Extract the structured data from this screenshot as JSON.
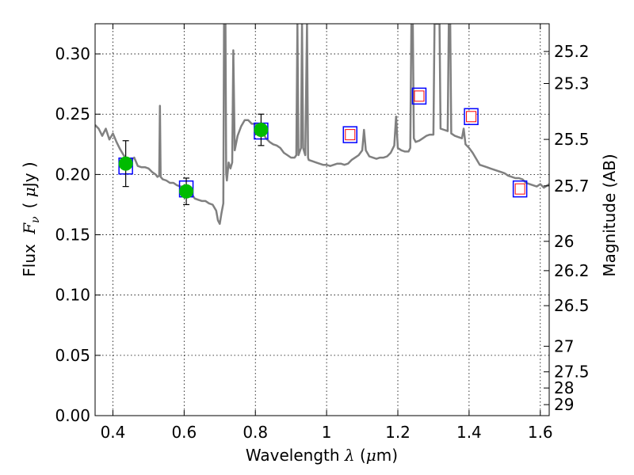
{
  "chart_data": {
    "type": "scatter",
    "xlabel_parts": [
      "Wavelength",
      "λ",
      "(",
      "μ",
      "m)"
    ],
    "ylabel_parts": [
      "Flux",
      "F",
      "ν",
      "(",
      "μ",
      "Jy",
      ")"
    ],
    "y2label": "Magnitude (AB)",
    "xlim": [
      0.35,
      1.625
    ],
    "ylim": [
      0.0,
      0.325
    ],
    "x_ticks": [
      {
        "value": 0.4,
        "label": "0.4"
      },
      {
        "value": 0.6,
        "label": "0.6"
      },
      {
        "value": 0.8,
        "label": "0.8"
      },
      {
        "value": 1.0,
        "label": "1"
      },
      {
        "value": 1.2,
        "label": "1.2"
      },
      {
        "value": 1.4,
        "label": "1.4"
      },
      {
        "value": 1.6,
        "label": "1.6"
      }
    ],
    "y_ticks": [
      {
        "value": 0.0,
        "label": "0.00"
      },
      {
        "value": 0.05,
        "label": "0.05"
      },
      {
        "value": 0.1,
        "label": "0.10"
      },
      {
        "value": 0.15,
        "label": "0.15"
      },
      {
        "value": 0.2,
        "label": "0.20"
      },
      {
        "value": 0.25,
        "label": "0.25"
      },
      {
        "value": 0.3,
        "label": "0.30"
      }
    ],
    "mag_ticks": [
      {
        "value": 25.2,
        "label": "25.2"
      },
      {
        "value": 25.3,
        "label": "25.3"
      },
      {
        "value": 25.5,
        "label": "25.5"
      },
      {
        "value": 25.7,
        "label": "25.7"
      },
      {
        "value": 26.0,
        "label": "26"
      },
      {
        "value": 26.2,
        "label": "26.2"
      },
      {
        "value": 26.5,
        "label": "26.5"
      },
      {
        "value": 27.0,
        "label": "27"
      },
      {
        "value": 27.5,
        "label": "27.5"
      },
      {
        "value": 28.0,
        "label": "28"
      },
      {
        "value": 29.0,
        "label": "29"
      }
    ],
    "grid": true,
    "sed_model": {
      "color": "#808080",
      "points": [
        [
          0.35,
          0.241
        ],
        [
          0.36,
          0.238
        ],
        [
          0.37,
          0.232
        ],
        [
          0.38,
          0.238
        ],
        [
          0.39,
          0.229
        ],
        [
          0.4,
          0.234
        ],
        [
          0.41,
          0.227
        ],
        [
          0.42,
          0.221
        ],
        [
          0.43,
          0.216
        ],
        [
          0.44,
          0.212
        ],
        [
          0.45,
          0.212
        ],
        [
          0.46,
          0.214
        ],
        [
          0.47,
          0.207
        ],
        [
          0.48,
          0.206
        ],
        [
          0.49,
          0.206
        ],
        [
          0.5,
          0.205
        ],
        [
          0.51,
          0.202
        ],
        [
          0.52,
          0.2
        ],
        [
          0.525,
          0.198
        ],
        [
          0.53,
          0.199
        ],
        [
          0.532,
          0.257
        ],
        [
          0.534,
          0.198
        ],
        [
          0.54,
          0.196
        ],
        [
          0.55,
          0.195
        ],
        [
          0.56,
          0.193
        ],
        [
          0.57,
          0.193
        ],
        [
          0.58,
          0.191
        ],
        [
          0.59,
          0.19
        ],
        [
          0.6,
          0.19
        ],
        [
          0.61,
          0.189
        ],
        [
          0.62,
          0.184
        ],
        [
          0.63,
          0.18
        ],
        [
          0.64,
          0.179
        ],
        [
          0.65,
          0.178
        ],
        [
          0.66,
          0.178
        ],
        [
          0.67,
          0.176
        ],
        [
          0.68,
          0.175
        ],
        [
          0.69,
          0.17
        ],
        [
          0.695,
          0.162
        ],
        [
          0.7,
          0.159
        ],
        [
          0.705,
          0.168
        ],
        [
          0.71,
          0.176
        ],
        [
          0.712,
          0.325
        ],
        [
          0.716,
          0.325
        ],
        [
          0.718,
          0.201
        ],
        [
          0.72,
          0.195
        ],
        [
          0.725,
          0.21
        ],
        [
          0.73,
          0.205
        ],
        [
          0.735,
          0.21
        ],
        [
          0.738,
          0.303
        ],
        [
          0.742,
          0.22
        ],
        [
          0.75,
          0.232
        ],
        [
          0.76,
          0.24
        ],
        [
          0.77,
          0.245
        ],
        [
          0.78,
          0.245
        ],
        [
          0.79,
          0.242
        ],
        [
          0.8,
          0.242
        ],
        [
          0.81,
          0.238
        ],
        [
          0.82,
          0.235
        ],
        [
          0.83,
          0.23
        ],
        [
          0.84,
          0.227
        ],
        [
          0.85,
          0.225
        ],
        [
          0.86,
          0.224
        ],
        [
          0.87,
          0.222
        ],
        [
          0.88,
          0.218
        ],
        [
          0.89,
          0.216
        ],
        [
          0.9,
          0.214
        ],
        [
          0.91,
          0.214
        ],
        [
          0.915,
          0.216
        ],
        [
          0.918,
          0.325
        ],
        [
          0.921,
          0.216
        ],
        [
          0.928,
          0.222
        ],
        [
          0.931,
          0.325
        ],
        [
          0.934,
          0.222
        ],
        [
          0.94,
          0.216
        ],
        [
          0.945,
          0.325
        ],
        [
          0.948,
          0.214
        ],
        [
          0.95,
          0.212
        ],
        [
          0.96,
          0.211
        ],
        [
          0.97,
          0.21
        ],
        [
          0.98,
          0.209
        ],
        [
          0.99,
          0.208
        ],
        [
          1.0,
          0.208
        ],
        [
          1.01,
          0.207
        ],
        [
          1.02,
          0.208
        ],
        [
          1.03,
          0.209
        ],
        [
          1.04,
          0.209
        ],
        [
          1.05,
          0.208
        ],
        [
          1.06,
          0.209
        ],
        [
          1.07,
          0.212
        ],
        [
          1.08,
          0.214
        ],
        [
          1.09,
          0.216
        ],
        [
          1.1,
          0.22
        ],
        [
          1.105,
          0.237
        ],
        [
          1.11,
          0.22
        ],
        [
          1.12,
          0.215
        ],
        [
          1.13,
          0.214
        ],
        [
          1.14,
          0.213
        ],
        [
          1.15,
          0.214
        ],
        [
          1.16,
          0.214
        ],
        [
          1.17,
          0.215
        ],
        [
          1.18,
          0.218
        ],
        [
          1.19,
          0.224
        ],
        [
          1.195,
          0.248
        ],
        [
          1.2,
          0.222
        ],
        [
          1.21,
          0.22
        ],
        [
          1.22,
          0.219
        ],
        [
          1.23,
          0.219
        ],
        [
          1.235,
          0.222
        ],
        [
          1.238,
          0.325
        ],
        [
          1.242,
          0.325
        ],
        [
          1.245,
          0.23
        ],
        [
          1.25,
          0.227
        ],
        [
          1.26,
          0.228
        ],
        [
          1.27,
          0.23
        ],
        [
          1.28,
          0.232
        ],
        [
          1.29,
          0.233
        ],
        [
          1.3,
          0.233
        ],
        [
          1.303,
          0.325
        ],
        [
          1.317,
          0.325
        ],
        [
          1.32,
          0.238
        ],
        [
          1.33,
          0.237
        ],
        [
          1.34,
          0.236
        ],
        [
          1.343,
          0.325
        ],
        [
          1.347,
          0.325
        ],
        [
          1.35,
          0.234
        ],
        [
          1.36,
          0.232
        ],
        [
          1.37,
          0.231
        ],
        [
          1.38,
          0.23
        ],
        [
          1.385,
          0.238
        ],
        [
          1.39,
          0.225
        ],
        [
          1.4,
          0.222
        ],
        [
          1.41,
          0.218
        ],
        [
          1.42,
          0.213
        ],
        [
          1.43,
          0.208
        ],
        [
          1.44,
          0.207
        ],
        [
          1.45,
          0.206
        ],
        [
          1.46,
          0.205
        ],
        [
          1.47,
          0.204
        ],
        [
          1.48,
          0.203
        ],
        [
          1.49,
          0.202
        ],
        [
          1.5,
          0.201
        ],
        [
          1.51,
          0.199
        ],
        [
          1.52,
          0.198
        ],
        [
          1.53,
          0.197
        ],
        [
          1.54,
          0.197
        ],
        [
          1.55,
          0.196
        ],
        [
          1.56,
          0.193
        ],
        [
          1.57,
          0.192
        ],
        [
          1.58,
          0.191
        ],
        [
          1.59,
          0.19
        ],
        [
          1.6,
          0.192
        ],
        [
          1.61,
          0.189
        ],
        [
          1.62,
          0.191
        ],
        [
          1.625,
          0.192
        ]
      ]
    },
    "measured": {
      "color": "#00bb00",
      "points": [
        {
          "x": 0.436,
          "y": 0.209,
          "yerr": 0.019
        },
        {
          "x": 0.606,
          "y": 0.186,
          "yerr": 0.011
        },
        {
          "x": 0.816,
          "y": 0.237,
          "yerr": 0.013
        }
      ]
    },
    "model_photometry": {
      "outer_color": "#0000ff",
      "inner_color": "#ff0000",
      "points": [
        {
          "x": 0.436,
          "y": 0.207,
          "inner": false
        },
        {
          "x": 0.606,
          "y": 0.188,
          "inner": false
        },
        {
          "x": 0.816,
          "y": 0.236,
          "inner": false
        },
        {
          "x": 1.066,
          "y": 0.233,
          "inner": true
        },
        {
          "x": 1.26,
          "y": 0.265,
          "inner": true
        },
        {
          "x": 1.406,
          "y": 0.248,
          "inner": true
        },
        {
          "x": 1.543,
          "y": 0.188,
          "inner": true
        }
      ]
    }
  }
}
